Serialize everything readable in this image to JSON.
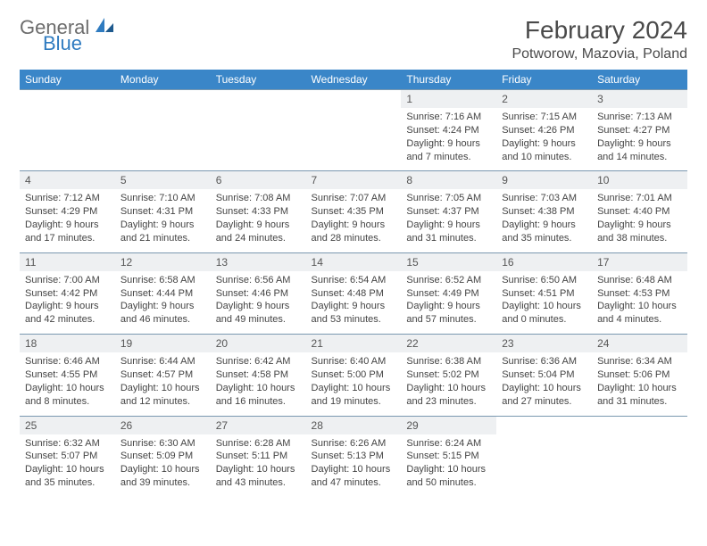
{
  "brand": {
    "word1": "General",
    "word2": "Blue"
  },
  "title": "February 2024",
  "location": "Potworow, Mazovia, Poland",
  "colors": {
    "header_bg": "#3a86c8",
    "header_text": "#ffffff",
    "daynum_bg": "#eef0f2",
    "border": "#7a98b0",
    "text": "#444444",
    "logo_gray": "#6d6d6d",
    "logo_blue": "#2f7bc0"
  },
  "day_names": [
    "Sunday",
    "Monday",
    "Tuesday",
    "Wednesday",
    "Thursday",
    "Friday",
    "Saturday"
  ],
  "weeks": [
    [
      null,
      null,
      null,
      null,
      {
        "n": "1",
        "sr": "Sunrise: 7:16 AM",
        "ss": "Sunset: 4:24 PM",
        "dl1": "Daylight: 9 hours",
        "dl2": "and 7 minutes."
      },
      {
        "n": "2",
        "sr": "Sunrise: 7:15 AM",
        "ss": "Sunset: 4:26 PM",
        "dl1": "Daylight: 9 hours",
        "dl2": "and 10 minutes."
      },
      {
        "n": "3",
        "sr": "Sunrise: 7:13 AM",
        "ss": "Sunset: 4:27 PM",
        "dl1": "Daylight: 9 hours",
        "dl2": "and 14 minutes."
      }
    ],
    [
      {
        "n": "4",
        "sr": "Sunrise: 7:12 AM",
        "ss": "Sunset: 4:29 PM",
        "dl1": "Daylight: 9 hours",
        "dl2": "and 17 minutes."
      },
      {
        "n": "5",
        "sr": "Sunrise: 7:10 AM",
        "ss": "Sunset: 4:31 PM",
        "dl1": "Daylight: 9 hours",
        "dl2": "and 21 minutes."
      },
      {
        "n": "6",
        "sr": "Sunrise: 7:08 AM",
        "ss": "Sunset: 4:33 PM",
        "dl1": "Daylight: 9 hours",
        "dl2": "and 24 minutes."
      },
      {
        "n": "7",
        "sr": "Sunrise: 7:07 AM",
        "ss": "Sunset: 4:35 PM",
        "dl1": "Daylight: 9 hours",
        "dl2": "and 28 minutes."
      },
      {
        "n": "8",
        "sr": "Sunrise: 7:05 AM",
        "ss": "Sunset: 4:37 PM",
        "dl1": "Daylight: 9 hours",
        "dl2": "and 31 minutes."
      },
      {
        "n": "9",
        "sr": "Sunrise: 7:03 AM",
        "ss": "Sunset: 4:38 PM",
        "dl1": "Daylight: 9 hours",
        "dl2": "and 35 minutes."
      },
      {
        "n": "10",
        "sr": "Sunrise: 7:01 AM",
        "ss": "Sunset: 4:40 PM",
        "dl1": "Daylight: 9 hours",
        "dl2": "and 38 minutes."
      }
    ],
    [
      {
        "n": "11",
        "sr": "Sunrise: 7:00 AM",
        "ss": "Sunset: 4:42 PM",
        "dl1": "Daylight: 9 hours",
        "dl2": "and 42 minutes."
      },
      {
        "n": "12",
        "sr": "Sunrise: 6:58 AM",
        "ss": "Sunset: 4:44 PM",
        "dl1": "Daylight: 9 hours",
        "dl2": "and 46 minutes."
      },
      {
        "n": "13",
        "sr": "Sunrise: 6:56 AM",
        "ss": "Sunset: 4:46 PM",
        "dl1": "Daylight: 9 hours",
        "dl2": "and 49 minutes."
      },
      {
        "n": "14",
        "sr": "Sunrise: 6:54 AM",
        "ss": "Sunset: 4:48 PM",
        "dl1": "Daylight: 9 hours",
        "dl2": "and 53 minutes."
      },
      {
        "n": "15",
        "sr": "Sunrise: 6:52 AM",
        "ss": "Sunset: 4:49 PM",
        "dl1": "Daylight: 9 hours",
        "dl2": "and 57 minutes."
      },
      {
        "n": "16",
        "sr": "Sunrise: 6:50 AM",
        "ss": "Sunset: 4:51 PM",
        "dl1": "Daylight: 10 hours",
        "dl2": "and 0 minutes."
      },
      {
        "n": "17",
        "sr": "Sunrise: 6:48 AM",
        "ss": "Sunset: 4:53 PM",
        "dl1": "Daylight: 10 hours",
        "dl2": "and 4 minutes."
      }
    ],
    [
      {
        "n": "18",
        "sr": "Sunrise: 6:46 AM",
        "ss": "Sunset: 4:55 PM",
        "dl1": "Daylight: 10 hours",
        "dl2": "and 8 minutes."
      },
      {
        "n": "19",
        "sr": "Sunrise: 6:44 AM",
        "ss": "Sunset: 4:57 PM",
        "dl1": "Daylight: 10 hours",
        "dl2": "and 12 minutes."
      },
      {
        "n": "20",
        "sr": "Sunrise: 6:42 AM",
        "ss": "Sunset: 4:58 PM",
        "dl1": "Daylight: 10 hours",
        "dl2": "and 16 minutes."
      },
      {
        "n": "21",
        "sr": "Sunrise: 6:40 AM",
        "ss": "Sunset: 5:00 PM",
        "dl1": "Daylight: 10 hours",
        "dl2": "and 19 minutes."
      },
      {
        "n": "22",
        "sr": "Sunrise: 6:38 AM",
        "ss": "Sunset: 5:02 PM",
        "dl1": "Daylight: 10 hours",
        "dl2": "and 23 minutes."
      },
      {
        "n": "23",
        "sr": "Sunrise: 6:36 AM",
        "ss": "Sunset: 5:04 PM",
        "dl1": "Daylight: 10 hours",
        "dl2": "and 27 minutes."
      },
      {
        "n": "24",
        "sr": "Sunrise: 6:34 AM",
        "ss": "Sunset: 5:06 PM",
        "dl1": "Daylight: 10 hours",
        "dl2": "and 31 minutes."
      }
    ],
    [
      {
        "n": "25",
        "sr": "Sunrise: 6:32 AM",
        "ss": "Sunset: 5:07 PM",
        "dl1": "Daylight: 10 hours",
        "dl2": "and 35 minutes."
      },
      {
        "n": "26",
        "sr": "Sunrise: 6:30 AM",
        "ss": "Sunset: 5:09 PM",
        "dl1": "Daylight: 10 hours",
        "dl2": "and 39 minutes."
      },
      {
        "n": "27",
        "sr": "Sunrise: 6:28 AM",
        "ss": "Sunset: 5:11 PM",
        "dl1": "Daylight: 10 hours",
        "dl2": "and 43 minutes."
      },
      {
        "n": "28",
        "sr": "Sunrise: 6:26 AM",
        "ss": "Sunset: 5:13 PM",
        "dl1": "Daylight: 10 hours",
        "dl2": "and 47 minutes."
      },
      {
        "n": "29",
        "sr": "Sunrise: 6:24 AM",
        "ss": "Sunset: 5:15 PM",
        "dl1": "Daylight: 10 hours",
        "dl2": "and 50 minutes."
      },
      null,
      null
    ]
  ]
}
